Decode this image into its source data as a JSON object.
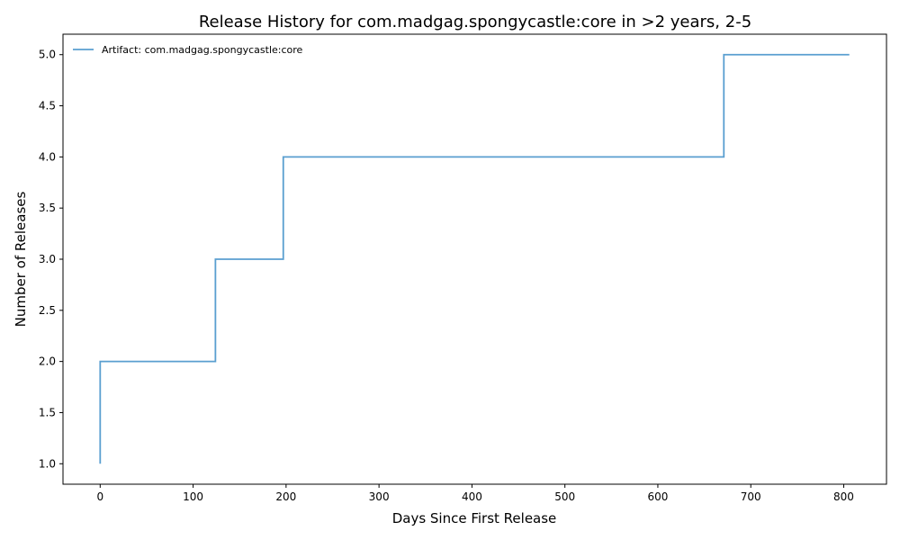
{
  "chart_data": {
    "type": "line",
    "step": "post",
    "title": "Release History for com.madgag.spongycastle:core in >2 years, 2-5",
    "xlabel": "Days Since First Release",
    "ylabel": "Number of Releases",
    "xlim": [
      -40,
      846
    ],
    "ylim": [
      0.8,
      5.2
    ],
    "xticks": [
      0,
      100,
      200,
      300,
      400,
      500,
      600,
      700,
      800
    ],
    "yticks": [
      1.0,
      1.5,
      2.0,
      2.5,
      3.0,
      3.5,
      4.0,
      4.5,
      5.0
    ],
    "grid": false,
    "legend_position": "top-left",
    "series": [
      {
        "name": "Artifact: com.madgag.spongycastle:core",
        "color": "#5a9fd0",
        "x": [
          0,
          0,
          124,
          197,
          671,
          806
        ],
        "y": [
          1,
          2,
          3,
          4,
          5,
          5
        ]
      }
    ]
  }
}
